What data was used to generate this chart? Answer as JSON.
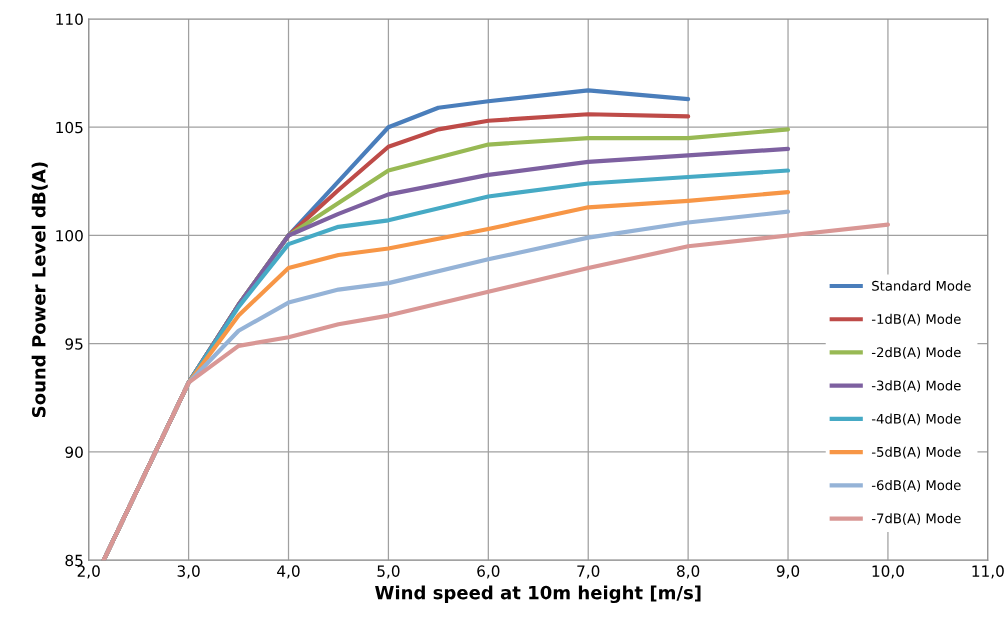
{
  "chart_data": {
    "type": "line",
    "xlabel": "Wind speed at 10m height [m/s]",
    "ylabel": "Sound Power Level dB(A)",
    "xlim": [
      2.0,
      11.0
    ],
    "xticks": [
      {
        "value": 2,
        "label": "2,0"
      },
      {
        "value": 3,
        "label": "3,0"
      },
      {
        "value": 4,
        "label": "4,0"
      },
      {
        "value": 5,
        "label": "5,0"
      },
      {
        "value": 6,
        "label": "6,0"
      },
      {
        "value": 7,
        "label": "7,0"
      },
      {
        "value": 8,
        "label": "8,0"
      },
      {
        "value": 9,
        "label": "9,0"
      },
      {
        "value": 10,
        "label": "10,0"
      },
      {
        "value": 11,
        "label": "11,0"
      }
    ],
    "ylim": [
      85,
      110
    ],
    "yticks": [
      85,
      90,
      95,
      100,
      105,
      110
    ],
    "grid": true,
    "legend": "right",
    "marker": "none",
    "line_style": "solid",
    "series": [
      {
        "name": "Standard Mode",
        "color": "#4a7ebb",
        "x": [
          2.15,
          3.0,
          3.5,
          4.0,
          4.5,
          5.0,
          5.5,
          6.0,
          7.0,
          8.0
        ],
        "values": [
          85,
          93.2,
          96.8,
          100,
          102.5,
          105.0,
          105.9,
          106.2,
          106.7,
          106.3
        ]
      },
      {
        "name": "-1dB(A) Mode",
        "color": "#be4b48",
        "x": [
          2.15,
          3.0,
          3.5,
          4.0,
          4.5,
          5.0,
          5.5,
          6.0,
          7.0,
          8.0
        ],
        "values": [
          85,
          93.2,
          96.8,
          100,
          102.1,
          104.1,
          104.9,
          105.3,
          105.6,
          105.5
        ]
      },
      {
        "name": "-2dB(A) Mode",
        "color": "#98b954",
        "x": [
          2.15,
          3.0,
          3.5,
          4.0,
          4.5,
          5.0,
          6.0,
          7.0,
          8.0,
          9.0
        ],
        "values": [
          85,
          93.2,
          96.8,
          100,
          101.5,
          103.0,
          104.2,
          104.5,
          104.5,
          104.9
        ]
      },
      {
        "name": "-3dB(A) Mode",
        "color": "#7d60a0",
        "x": [
          2.15,
          3.0,
          3.5,
          4.0,
          4.5,
          5.0,
          6.0,
          7.0,
          8.0,
          9.0
        ],
        "values": [
          85,
          93.2,
          96.8,
          100,
          101.0,
          101.9,
          102.8,
          103.4,
          103.7,
          104.0
        ]
      },
      {
        "name": "-4dB(A) Mode",
        "color": "#46aac5",
        "x": [
          2.15,
          3.0,
          3.5,
          4.0,
          4.5,
          5.0,
          6.0,
          7.0,
          8.0,
          9.0
        ],
        "values": [
          85,
          93.2,
          96.7,
          99.6,
          100.4,
          100.7,
          101.8,
          102.4,
          102.7,
          103.0
        ]
      },
      {
        "name": "-5dB(A) Mode",
        "color": "#f79646",
        "x": [
          2.15,
          3.0,
          3.5,
          4.0,
          4.5,
          5.0,
          6.0,
          7.0,
          8.0,
          9.0
        ],
        "values": [
          85,
          93.2,
          96.3,
          98.5,
          99.1,
          99.4,
          100.3,
          101.3,
          101.6,
          102.0
        ]
      },
      {
        "name": "-6dB(A) Mode",
        "color": "#95b3d7",
        "x": [
          2.15,
          3.0,
          3.5,
          4.0,
          4.5,
          5.0,
          6.0,
          7.0,
          8.0,
          9.0
        ],
        "values": [
          85,
          93.2,
          95.6,
          96.9,
          97.5,
          97.8,
          98.9,
          99.9,
          100.6,
          101.1
        ]
      },
      {
        "name": "-7dB(A) Mode",
        "color": "#d99795",
        "x": [
          2.15,
          3.0,
          3.5,
          4.0,
          4.5,
          5.0,
          6.0,
          7.0,
          8.0,
          9.0,
          10.0
        ],
        "values": [
          85,
          93.2,
          94.9,
          95.3,
          95.9,
          96.3,
          97.4,
          98.5,
          99.5,
          100.0,
          100.5
        ]
      }
    ]
  }
}
